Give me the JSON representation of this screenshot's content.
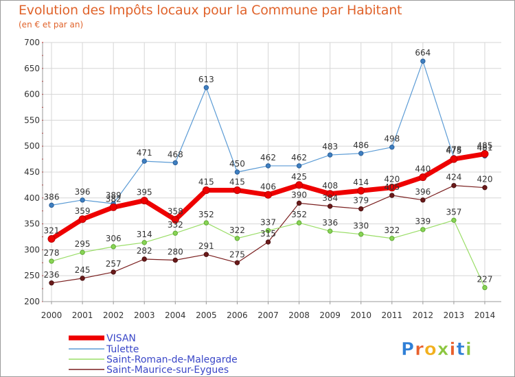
{
  "chart_data": {
    "type": "line",
    "title": "Evolution des Impôts locaux pour la Commune par Habitant",
    "subtitle": "(en € et par an)",
    "xlabel": "",
    "ylabel": "",
    "ylim": [
      200,
      700
    ],
    "yticks": [
      200,
      250,
      300,
      350,
      400,
      450,
      500,
      550,
      600,
      650,
      700
    ],
    "grid": true,
    "legend_position": "bottom-left",
    "x": [
      "2000",
      "2001",
      "2002",
      "2003",
      "2004",
      "2005",
      "2006",
      "2007",
      "2008",
      "2009",
      "2010",
      "2011",
      "2012",
      "2013",
      "2014"
    ],
    "series": [
      {
        "name": "VISAN",
        "color": "#ee0000",
        "values": [
          321,
          359,
          382,
          395,
          358,
          415,
          415,
          406,
          425,
          408,
          414,
          420,
          440,
          475,
          485
        ]
      },
      {
        "name": "Tulette",
        "color": "#5b9bd5",
        "values": [
          386,
          396,
          389,
          471,
          468,
          613,
          450,
          462,
          462,
          483,
          486,
          498,
          664,
          478,
          481
        ]
      },
      {
        "name": "Saint-Roman-de-Malegarde",
        "color": "#99dd66",
        "values": [
          278,
          295,
          306,
          314,
          332,
          352,
          322,
          337,
          352,
          336,
          330,
          322,
          339,
          357,
          227
        ]
      },
      {
        "name": "Saint-Maurice-sur-Eygues",
        "color": "#7a1f1f",
        "values": [
          236,
          245,
          257,
          282,
          280,
          291,
          275,
          315,
          390,
          384,
          379,
          405,
          396,
          424,
          420
        ]
      }
    ]
  },
  "logo": {
    "text": "Proxiti"
  }
}
